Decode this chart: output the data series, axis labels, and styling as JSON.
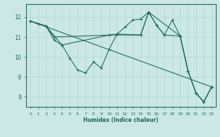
{
  "xlabel": "Humidex (Indice chaleur)",
  "bg_color": "#cce8e4",
  "line_color": "#1a6b5a",
  "grid_color": "#aed4cc",
  "xlim": [
    -0.5,
    23.5
  ],
  "ylim": [
    7.5,
    12.65
  ],
  "xticks": [
    0,
    1,
    2,
    3,
    4,
    5,
    6,
    7,
    8,
    9,
    10,
    11,
    12,
    13,
    14,
    15,
    16,
    17,
    18,
    19,
    20,
    21,
    22,
    23
  ],
  "yticks": [
    8,
    9,
    10,
    11,
    12
  ],
  "series": [
    {
      "x": [
        0,
        1,
        2,
        3,
        4,
        5,
        6,
        7,
        8,
        9,
        10,
        11,
        12,
        13,
        14,
        15,
        16,
        17,
        18,
        19,
        20,
        21,
        22,
        23
      ],
      "y": [
        11.8,
        11.65,
        11.55,
        10.85,
        10.6,
        9.95,
        9.35,
        9.2,
        9.75,
        9.45,
        10.4,
        11.15,
        11.5,
        11.85,
        11.9,
        12.25,
        11.6,
        11.1,
        11.85,
        11.05,
        9.3,
        8.2,
        7.75,
        8.5
      ]
    },
    {
      "x": [
        0,
        2,
        3,
        10,
        11,
        14,
        15,
        16,
        17,
        19,
        20,
        21,
        22,
        23
      ],
      "y": [
        11.8,
        11.55,
        11.0,
        11.1,
        11.15,
        11.1,
        12.25,
        11.6,
        11.1,
        11.05,
        9.3,
        8.2,
        7.75,
        8.5
      ]
    },
    {
      "x": [
        0,
        2,
        4,
        10,
        14,
        15,
        19,
        20,
        21,
        22,
        23
      ],
      "y": [
        11.8,
        11.55,
        10.6,
        11.1,
        11.1,
        12.25,
        11.05,
        9.3,
        8.2,
        7.75,
        8.5
      ]
    },
    {
      "x": [
        0,
        23
      ],
      "y": [
        11.8,
        8.5
      ]
    }
  ]
}
